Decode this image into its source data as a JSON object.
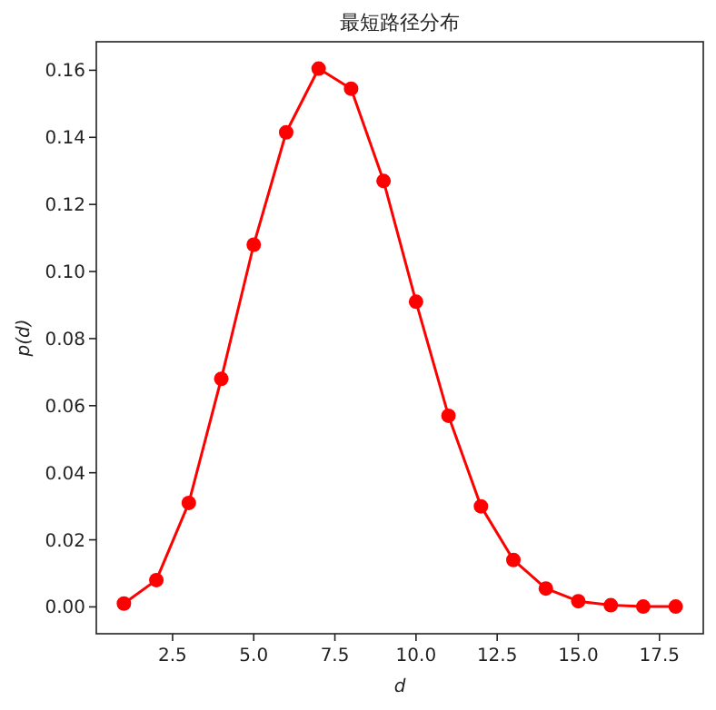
{
  "chart_data": {
    "type": "line",
    "title": "最短路径分布",
    "xlabel": "d",
    "ylabel": "p(d)",
    "x": [
      1,
      2,
      3,
      4,
      5,
      6,
      7,
      8,
      9,
      10,
      11,
      12,
      13,
      14,
      15,
      16,
      17,
      18
    ],
    "series": [
      {
        "color": "#ff0000",
        "values": [
          0.001,
          0.008,
          0.031,
          0.068,
          0.108,
          0.1415,
          0.1605,
          0.1545,
          0.127,
          0.091,
          0.057,
          0.03,
          0.014,
          0.0055,
          0.0017,
          0.0005,
          0.0001,
          0.0001
        ]
      }
    ],
    "xlim": [
      0.15,
      18.85
    ],
    "ylim": [
      -0.008,
      0.1685
    ],
    "xticks": [
      2.5,
      {
        "value": 5,
        "label": "5.0"
      },
      7.5,
      {
        "value": 10,
        "label": "10.0"
      },
      12.5,
      {
        "value": 15,
        "label": "15.0"
      },
      17.5
    ],
    "yticks": [
      {
        "value": 0,
        "label": "0.00"
      },
      {
        "value": 0.02,
        "label": "0.02"
      },
      {
        "value": 0.04,
        "label": "0.04"
      },
      {
        "value": 0.06,
        "label": "0.06"
      },
      {
        "value": 0.08,
        "label": "0.08"
      },
      {
        "value": 0.1,
        "label": "0.10"
      },
      {
        "value": 0.12,
        "label": "0.12"
      },
      {
        "value": 0.14,
        "label": "0.14"
      },
      {
        "value": 0.16,
        "label": "0.16"
      }
    ],
    "marker": "circle",
    "line_style": "solid",
    "grid": false
  }
}
